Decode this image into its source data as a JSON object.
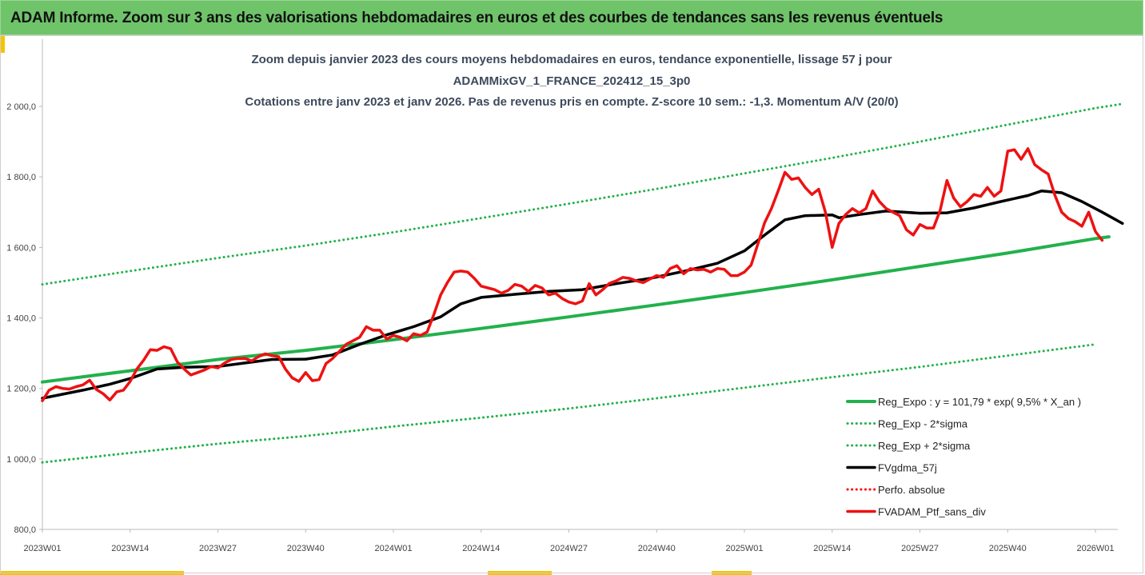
{
  "header": {
    "title": "ADAM Informe. Zoom sur 3 ans des valorisations hebdomadaires en euros et des courbes de tendances sans les revenus éventuels"
  },
  "chart_data": {
    "type": "line",
    "title_lines": [
      "Zoom depuis janvier 2023 des cours moyens hebdomadaires  en euros, tendance exponentielle, lissage 57 j pour",
      "ADAMMixGV_1_FRANCE_202412_15_3p0",
      "Cotations entre janv 2023 et janv 2026. Pas de revenus pris en compte. Z-score 10 sem.: -1,3. Momentum A/V (20/0)"
    ],
    "xlabel": "",
    "ylabel": "",
    "ylim": [
      800,
      2100
    ],
    "y_ticks": [
      "800,0",
      "1 000,0",
      "1 200,0",
      "1 400,0",
      "1 600,0",
      "1 800,0",
      "2 000,0"
    ],
    "y_tick_values": [
      800,
      1000,
      1200,
      1400,
      1600,
      1800,
      2000
    ],
    "x_ticks": [
      "2023W01",
      "2023W14",
      "2023W27",
      "2023W40",
      "2024W01",
      "2024W14",
      "2024W27",
      "2024W40",
      "2025W01",
      "2025W14",
      "2025W27",
      "2025W40",
      "2026W01"
    ],
    "x_tick_weeks": [
      0,
      13,
      26,
      39,
      52,
      65,
      78,
      91,
      104,
      117,
      130,
      143,
      156
    ],
    "x_range_weeks": [
      0,
      160
    ],
    "grid": false,
    "legend_position": "bottom-right",
    "series": [
      {
        "name": "Reg_Expo : y = 101,79 * exp( 9,5% *  X_an )",
        "color": "#22b14c",
        "style": "solid",
        "width": 4,
        "points": [
          [
            0,
            1218
          ],
          [
            13,
            1250
          ],
          [
            26,
            1282
          ],
          [
            39,
            1308
          ],
          [
            52,
            1338
          ],
          [
            65,
            1370
          ],
          [
            78,
            1403
          ],
          [
            91,
            1437
          ],
          [
            104,
            1472
          ],
          [
            117,
            1508
          ],
          [
            130,
            1546
          ],
          [
            143,
            1584
          ],
          [
            156,
            1625
          ],
          [
            158,
            1630
          ]
        ]
      },
      {
        "name": "Reg_Exp - 2*sigma",
        "color": "#22b14c",
        "style": "dotted",
        "width": 3,
        "points": [
          [
            0,
            990
          ],
          [
            13,
            1017
          ],
          [
            26,
            1043
          ],
          [
            39,
            1065
          ],
          [
            52,
            1092
          ],
          [
            65,
            1117
          ],
          [
            78,
            1143
          ],
          [
            91,
            1172
          ],
          [
            104,
            1202
          ],
          [
            117,
            1232
          ],
          [
            130,
            1261
          ],
          [
            143,
            1293
          ],
          [
            156,
            1325
          ]
        ]
      },
      {
        "name": "Reg_Exp + 2*sigma",
        "color": "#22b14c",
        "style": "dotted",
        "width": 3,
        "points": [
          [
            0,
            1495
          ],
          [
            13,
            1533
          ],
          [
            26,
            1570
          ],
          [
            39,
            1605
          ],
          [
            52,
            1643
          ],
          [
            65,
            1683
          ],
          [
            78,
            1724
          ],
          [
            91,
            1766
          ],
          [
            104,
            1810
          ],
          [
            117,
            1854
          ],
          [
            130,
            1900
          ],
          [
            143,
            1948
          ],
          [
            156,
            1995
          ],
          [
            160,
            2007
          ]
        ]
      },
      {
        "name": "FVgdma_57j",
        "color": "#000000",
        "style": "solid",
        "width": 3.5,
        "points": [
          [
            0,
            1172
          ],
          [
            6,
            1195
          ],
          [
            10,
            1212
          ],
          [
            13,
            1228
          ],
          [
            17,
            1255
          ],
          [
            21,
            1260
          ],
          [
            26,
            1262
          ],
          [
            30,
            1272
          ],
          [
            34,
            1282
          ],
          [
            39,
            1283
          ],
          [
            43,
            1295
          ],
          [
            47,
            1325
          ],
          [
            51,
            1352
          ],
          [
            55,
            1375
          ],
          [
            59,
            1403
          ],
          [
            62,
            1440
          ],
          [
            65,
            1458
          ],
          [
            70,
            1467
          ],
          [
            75,
            1475
          ],
          [
            80,
            1480
          ],
          [
            85,
            1497
          ],
          [
            90,
            1512
          ],
          [
            95,
            1532
          ],
          [
            100,
            1555
          ],
          [
            104,
            1590
          ],
          [
            107,
            1635
          ],
          [
            110,
            1678
          ],
          [
            113,
            1690
          ],
          [
            117,
            1692
          ],
          [
            118,
            1684
          ],
          [
            121,
            1693
          ],
          [
            125,
            1703
          ],
          [
            130,
            1697
          ],
          [
            134,
            1698
          ],
          [
            138,
            1712
          ],
          [
            142,
            1730
          ],
          [
            146,
            1747
          ],
          [
            148,
            1760
          ],
          [
            151,
            1755
          ],
          [
            154,
            1730
          ],
          [
            157,
            1700
          ],
          [
            160,
            1668
          ]
        ]
      },
      {
        "name": "Perfo. absolue",
        "color": "#ff0000",
        "style": "dotted",
        "width": 3,
        "points": []
      },
      {
        "name": "FVADAM_Ptf_sans_div",
        "color": "#ee1111",
        "style": "solid",
        "width": 3.5,
        "points": [
          [
            0,
            1165
          ],
          [
            1,
            1195
          ],
          [
            2,
            1205
          ],
          [
            3,
            1200
          ],
          [
            4,
            1198
          ],
          [
            5,
            1205
          ],
          [
            6,
            1210
          ],
          [
            7,
            1223
          ],
          [
            8,
            1197
          ],
          [
            9,
            1185
          ],
          [
            10,
            1167
          ],
          [
            11,
            1190
          ],
          [
            12,
            1195
          ],
          [
            13,
            1220
          ],
          [
            14,
            1255
          ],
          [
            15,
            1280
          ],
          [
            16,
            1310
          ],
          [
            17,
            1308
          ],
          [
            18,
            1318
          ],
          [
            19,
            1313
          ],
          [
            20,
            1275
          ],
          [
            21,
            1255
          ],
          [
            22,
            1238
          ],
          [
            23,
            1245
          ],
          [
            24,
            1252
          ],
          [
            25,
            1262
          ],
          [
            26,
            1258
          ],
          [
            27,
            1272
          ],
          [
            28,
            1282
          ],
          [
            29,
            1285
          ],
          [
            30,
            1285
          ],
          [
            31,
            1278
          ],
          [
            32,
            1290
          ],
          [
            33,
            1298
          ],
          [
            34,
            1293
          ],
          [
            35,
            1290
          ],
          [
            36,
            1255
          ],
          [
            37,
            1230
          ],
          [
            38,
            1220
          ],
          [
            39,
            1245
          ],
          [
            40,
            1222
          ],
          [
            41,
            1225
          ],
          [
            42,
            1270
          ],
          [
            43,
            1285
          ],
          [
            44,
            1305
          ],
          [
            45,
            1325
          ],
          [
            46,
            1335
          ],
          [
            47,
            1345
          ],
          [
            48,
            1375
          ],
          [
            49,
            1365
          ],
          [
            50,
            1365
          ],
          [
            51,
            1340
          ],
          [
            52,
            1350
          ],
          [
            53,
            1345
          ],
          [
            54,
            1335
          ],
          [
            55,
            1355
          ],
          [
            56,
            1350
          ],
          [
            57,
            1360
          ],
          [
            58,
            1410
          ],
          [
            59,
            1465
          ],
          [
            60,
            1500
          ],
          [
            61,
            1530
          ],
          [
            62,
            1533
          ],
          [
            63,
            1530
          ],
          [
            64,
            1512
          ],
          [
            65,
            1490
          ],
          [
            66,
            1485
          ],
          [
            67,
            1480
          ],
          [
            68,
            1470
          ],
          [
            69,
            1478
          ],
          [
            70,
            1495
          ],
          [
            71,
            1490
          ],
          [
            72,
            1475
          ],
          [
            73,
            1492
          ],
          [
            74,
            1485
          ],
          [
            75,
            1465
          ],
          [
            76,
            1470
          ],
          [
            77,
            1455
          ],
          [
            78,
            1445
          ],
          [
            79,
            1440
          ],
          [
            80,
            1448
          ],
          [
            81,
            1497
          ],
          [
            82,
            1465
          ],
          [
            83,
            1480
          ],
          [
            84,
            1498
          ],
          [
            85,
            1505
          ],
          [
            86,
            1515
          ],
          [
            87,
            1512
          ],
          [
            88,
            1505
          ],
          [
            89,
            1500
          ],
          [
            90,
            1510
          ],
          [
            91,
            1520
          ],
          [
            92,
            1515
          ],
          [
            93,
            1540
          ],
          [
            94,
            1548
          ],
          [
            95,
            1525
          ],
          [
            96,
            1540
          ],
          [
            97,
            1536
          ],
          [
            98,
            1538
          ],
          [
            99,
            1530
          ],
          [
            100,
            1540
          ],
          [
            101,
            1538
          ],
          [
            102,
            1520
          ],
          [
            103,
            1520
          ],
          [
            104,
            1530
          ],
          [
            105,
            1550
          ],
          [
            106,
            1610
          ],
          [
            107,
            1670
          ],
          [
            108,
            1710
          ],
          [
            109,
            1760
          ],
          [
            110,
            1813
          ],
          [
            111,
            1793
          ],
          [
            112,
            1797
          ],
          [
            113,
            1770
          ],
          [
            114,
            1750
          ],
          [
            115,
            1765
          ],
          [
            116,
            1700
          ],
          [
            117,
            1600
          ],
          [
            118,
            1668
          ],
          [
            119,
            1693
          ],
          [
            120,
            1710
          ],
          [
            121,
            1698
          ],
          [
            122,
            1710
          ],
          [
            123,
            1760
          ],
          [
            124,
            1730
          ],
          [
            125,
            1710
          ],
          [
            126,
            1700
          ],
          [
            127,
            1690
          ],
          [
            128,
            1650
          ],
          [
            129,
            1635
          ],
          [
            130,
            1665
          ],
          [
            131,
            1655
          ],
          [
            132,
            1655
          ],
          [
            133,
            1705
          ],
          [
            134,
            1790
          ],
          [
            135,
            1740
          ],
          [
            136,
            1715
          ],
          [
            137,
            1730
          ],
          [
            138,
            1750
          ],
          [
            139,
            1745
          ],
          [
            140,
            1770
          ],
          [
            141,
            1745
          ],
          [
            142,
            1760
          ],
          [
            143,
            1873
          ],
          [
            144,
            1877
          ],
          [
            145,
            1850
          ],
          [
            146,
            1880
          ],
          [
            147,
            1835
          ],
          [
            148,
            1820
          ],
          [
            149,
            1808
          ],
          [
            150,
            1748
          ],
          [
            151,
            1700
          ],
          [
            152,
            1682
          ],
          [
            153,
            1673
          ],
          [
            154,
            1660
          ],
          [
            155,
            1700
          ],
          [
            156,
            1645
          ],
          [
            157,
            1620
          ]
        ]
      }
    ]
  }
}
